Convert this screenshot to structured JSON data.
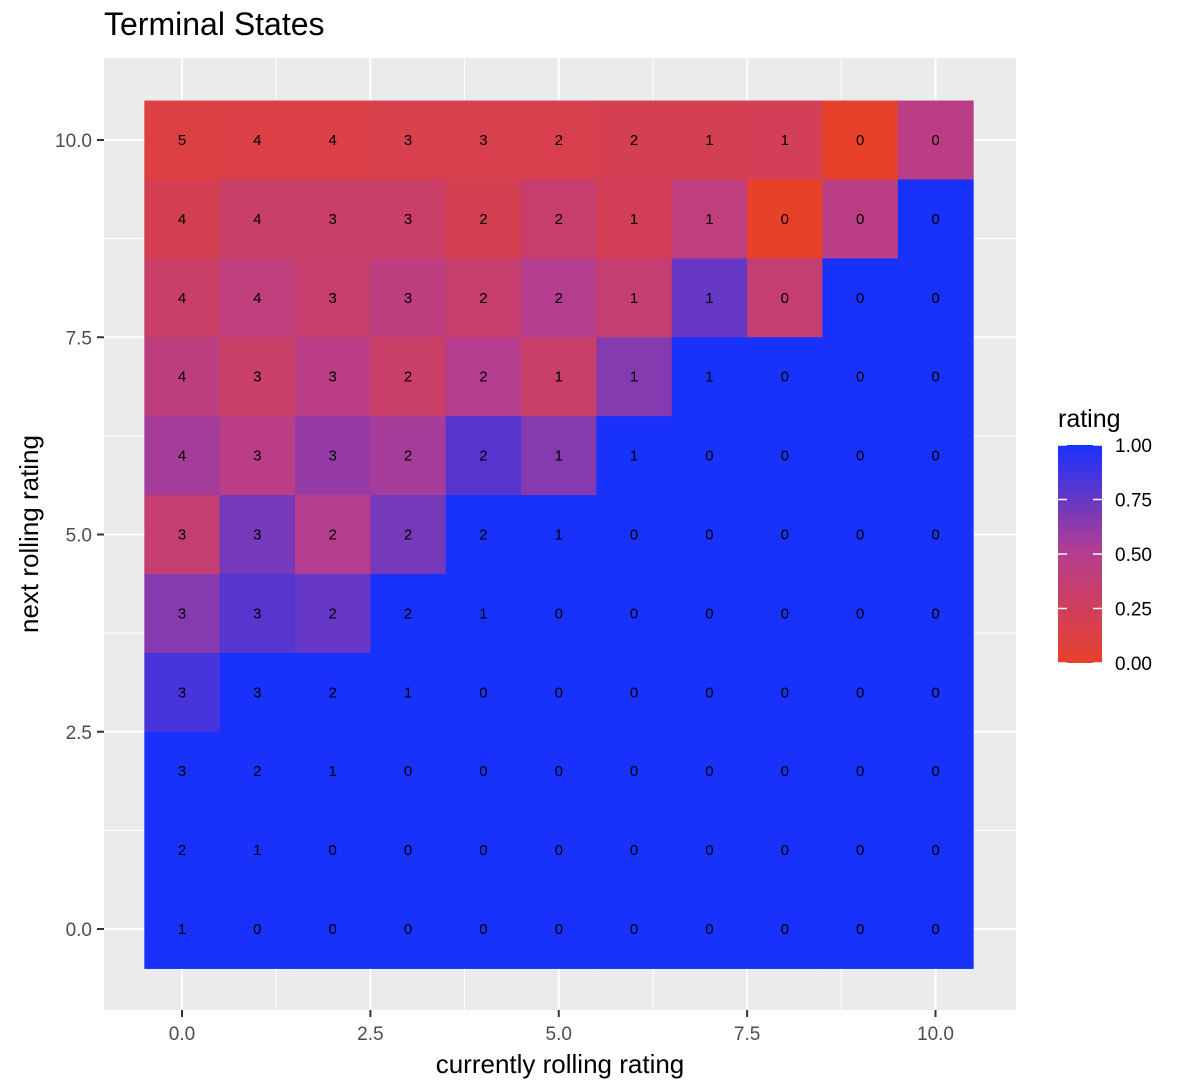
{
  "chart_data": {
    "type": "heatmap",
    "title": "Terminal States",
    "xlabel": "currently rolling rating",
    "ylabel": "next rolling rating",
    "x_categories": [
      0,
      1,
      2,
      3,
      4,
      5,
      6,
      7,
      8,
      9,
      10
    ],
    "y_categories": [
      0,
      1,
      2,
      3,
      4,
      5,
      6,
      7,
      8,
      9,
      10
    ],
    "xlim": [
      -0.5,
      10.5
    ],
    "ylim": [
      -0.5,
      10.5
    ],
    "x_ticks": [
      0.0,
      2.5,
      5.0,
      7.5,
      10.0
    ],
    "y_ticks": [
      0.0,
      2.5,
      5.0,
      7.5,
      10.0
    ],
    "x_tick_labels": [
      "0.0",
      "2.5",
      "5.0",
      "7.5",
      "10.0"
    ],
    "y_tick_labels": [
      "0.0",
      "2.5",
      "5.0",
      "7.5",
      "10.0"
    ],
    "grid": true,
    "labels_by_row_top_to_bottom": [
      [
        5,
        4,
        4,
        3,
        3,
        2,
        2,
        1,
        1,
        0,
        0
      ],
      [
        4,
        4,
        3,
        3,
        2,
        2,
        1,
        1,
        0,
        0,
        0
      ],
      [
        4,
        4,
        3,
        3,
        2,
        2,
        1,
        1,
        0,
        0,
        0
      ],
      [
        4,
        3,
        3,
        2,
        2,
        1,
        1,
        1,
        0,
        0,
        0
      ],
      [
        4,
        3,
        3,
        2,
        2,
        1,
        1,
        0,
        0,
        0,
        0
      ],
      [
        3,
        3,
        2,
        2,
        2,
        1,
        0,
        0,
        0,
        0,
        0
      ],
      [
        3,
        3,
        2,
        2,
        1,
        0,
        0,
        0,
        0,
        0,
        0
      ],
      [
        3,
        3,
        2,
        1,
        0,
        0,
        0,
        0,
        0,
        0,
        0
      ],
      [
        3,
        2,
        1,
        0,
        0,
        0,
        0,
        0,
        0,
        0,
        0
      ],
      [
        2,
        1,
        0,
        0,
        0,
        0,
        0,
        0,
        0,
        0,
        0
      ],
      [
        1,
        0,
        0,
        0,
        0,
        0,
        0,
        0,
        0,
        0,
        0
      ]
    ],
    "rating_by_row_top_to_bottom": [
      [
        0.12,
        0.14,
        0.14,
        0.17,
        0.17,
        0.17,
        0.2,
        0.2,
        0.22,
        0.0,
        0.45
      ],
      [
        0.2,
        0.3,
        0.3,
        0.3,
        0.2,
        0.33,
        0.22,
        0.4,
        0.0,
        0.45,
        1.0
      ],
      [
        0.3,
        0.4,
        0.33,
        0.42,
        0.33,
        0.5,
        0.35,
        0.75,
        0.35,
        1.0,
        1.0
      ],
      [
        0.42,
        0.3,
        0.45,
        0.3,
        0.5,
        0.3,
        0.65,
        1.0,
        1.0,
        1.0,
        1.0
      ],
      [
        0.55,
        0.45,
        0.6,
        0.55,
        0.8,
        0.65,
        1.0,
        1.0,
        1.0,
        1.0,
        1.0
      ],
      [
        0.35,
        0.7,
        0.5,
        0.7,
        1.0,
        1.0,
        1.0,
        1.0,
        1.0,
        1.0,
        1.0
      ],
      [
        0.65,
        0.8,
        0.75,
        1.0,
        1.0,
        1.0,
        1.0,
        1.0,
        1.0,
        1.0,
        1.0
      ],
      [
        0.85,
        1.0,
        1.0,
        1.0,
        1.0,
        1.0,
        1.0,
        1.0,
        1.0,
        1.0,
        1.0
      ],
      [
        1.0,
        1.0,
        1.0,
        1.0,
        1.0,
        1.0,
        1.0,
        1.0,
        1.0,
        1.0,
        1.0
      ],
      [
        1.0,
        1.0,
        1.0,
        1.0,
        1.0,
        1.0,
        1.0,
        1.0,
        1.0,
        1.0,
        1.0
      ],
      [
        1.0,
        1.0,
        1.0,
        1.0,
        1.0,
        1.0,
        1.0,
        1.0,
        1.0,
        1.0,
        1.0
      ]
    ],
    "legend": {
      "title": "rating",
      "placement": "right",
      "range": [
        0.0,
        1.0
      ],
      "ticks": [
        0.0,
        0.25,
        0.5,
        0.75,
        1.0
      ],
      "tick_labels": [
        "0.00",
        "0.25",
        "0.50",
        "0.75",
        "1.00"
      ],
      "low_color": "#e8412a",
      "high_color": "#1832fb"
    }
  },
  "colors": {
    "panel_background": "#ebebeb",
    "grid_line": "#ffffff"
  }
}
